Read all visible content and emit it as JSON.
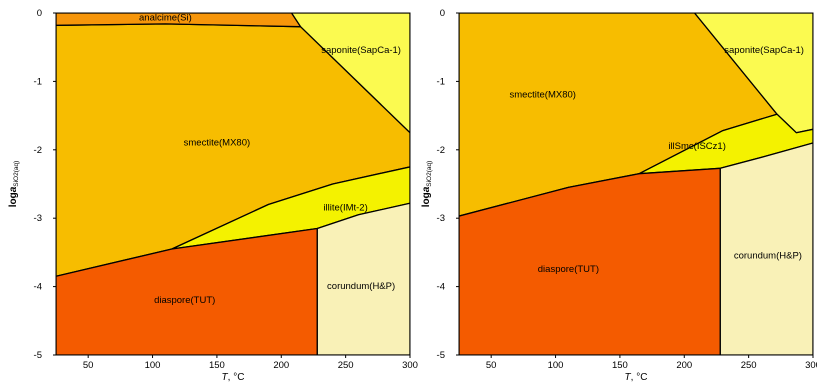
{
  "chart_data": [
    {
      "type": "area",
      "title": "",
      "xlabel": {
        "italic": "T",
        "rest": ", °C"
      },
      "ylabel": {
        "main": "log",
        "italic": "a",
        "sub": "SiO2(aq)"
      },
      "xlim": [
        25,
        300
      ],
      "ylim": [
        -5,
        0
      ],
      "x_ticks": [
        "50",
        "100",
        "150",
        "200",
        "250",
        "300"
      ],
      "x_tick_values": [
        50,
        100,
        150,
        200,
        250,
        300
      ],
      "y_ticks": [
        "0",
        "-1",
        "-2",
        "-3",
        "-4",
        "-5"
      ],
      "y_tick_values": [
        0,
        -1,
        -2,
        -3,
        -4,
        -5
      ],
      "regions": [
        {
          "name": "smectite(MX80)",
          "color": "#f7bd00",
          "polygon": [
            [
              25,
              -0.18
            ],
            [
              110,
              -0.16
            ],
            [
              215,
              -0.2
            ],
            [
              300,
              -1.75
            ],
            [
              300,
              -2.25
            ],
            [
              240,
              -2.5
            ],
            [
              190,
              -2.8
            ],
            [
              115,
              -3.45
            ],
            [
              25,
              -3.85
            ]
          ],
          "label_at": [
            150,
            -1.9
          ]
        },
        {
          "name": "analcime(Si)",
          "color": "#f7960a",
          "polygon": [
            [
              25,
              0
            ],
            [
              208,
              0
            ],
            [
              215,
              -0.2
            ],
            [
              110,
              -0.16
            ],
            [
              25,
              -0.18
            ]
          ],
          "label_at": [
            110,
            -0.07
          ]
        },
        {
          "name": "saponite(SapCa-1)",
          "color": "#fbfa50",
          "polygon": [
            [
              208,
              0
            ],
            [
              300,
              0
            ],
            [
              300,
              -1.75
            ],
            [
              215,
              -0.2
            ]
          ],
          "label_at": [
            262,
            -0.55
          ]
        },
        {
          "name": "illite(IMt-2)",
          "color": "#f4f200",
          "polygon": [
            [
              115,
              -3.45
            ],
            [
              190,
              -2.8
            ],
            [
              240,
              -2.5
            ],
            [
              300,
              -2.25
            ],
            [
              300,
              -2.78
            ],
            [
              260,
              -2.95
            ],
            [
              228,
              -3.15
            ]
          ],
          "label_at": [
            250,
            -2.85
          ]
        },
        {
          "name": "diaspore(TUT)",
          "color": "#f45b00",
          "polygon": [
            [
              25,
              -3.85
            ],
            [
              115,
              -3.45
            ],
            [
              228,
              -3.15
            ],
            [
              228,
              -5
            ],
            [
              25,
              -5
            ]
          ],
          "label_at": [
            125,
            -4.2
          ]
        },
        {
          "name": "corundum(H&P)",
          "color": "#f9f1b7",
          "polygon": [
            [
              228,
              -3.15
            ],
            [
              260,
              -2.95
            ],
            [
              300,
              -2.78
            ],
            [
              300,
              -5
            ],
            [
              228,
              -5
            ]
          ],
          "label_at": [
            262,
            -4.0
          ]
        }
      ]
    },
    {
      "type": "area",
      "title": "",
      "xlabel": {
        "italic": "T",
        "rest": ", °C"
      },
      "ylabel": {
        "main": "log",
        "italic": "a",
        "sub": "SiO2(aq)"
      },
      "xlim": [
        25,
        300
      ],
      "ylim": [
        -5,
        0
      ],
      "x_ticks": [
        "50",
        "100",
        "150",
        "200",
        "250",
        "300"
      ],
      "x_tick_values": [
        50,
        100,
        150,
        200,
        250,
        300
      ],
      "y_ticks": [
        "0",
        "-1",
        "-2",
        "-3",
        "-4",
        "-5"
      ],
      "y_tick_values": [
        0,
        -1,
        -2,
        -3,
        -4,
        -5
      ],
      "regions": [
        {
          "name": "smectite(MX80)",
          "color": "#f7bd00",
          "polygon": [
            [
              25,
              0
            ],
            [
              208,
              0
            ],
            [
              272,
              -1.48
            ],
            [
              230,
              -1.72
            ],
            [
              165,
              -2.35
            ],
            [
              110,
              -2.55
            ],
            [
              25,
              -2.97
            ]
          ],
          "label_at": [
            90,
            -1.2
          ]
        },
        {
          "name": "saponite(SapCa-1)",
          "color": "#fbfa50",
          "polygon": [
            [
              208,
              0
            ],
            [
              300,
              0
            ],
            [
              300,
              -1.7
            ],
            [
              287,
              -1.75
            ],
            [
              272,
              -1.48
            ]
          ],
          "label_at": [
            262,
            -0.55
          ]
        },
        {
          "name": "illSmc(ISCz1)",
          "color": "#f4f200",
          "polygon": [
            [
              165,
              -2.35
            ],
            [
              230,
              -1.72
            ],
            [
              272,
              -1.48
            ],
            [
              287,
              -1.75
            ],
            [
              300,
              -1.7
            ],
            [
              300,
              -1.9
            ],
            [
              262,
              -2.1
            ],
            [
              228,
              -2.27
            ]
          ],
          "label_at": [
            210,
            -1.95
          ]
        },
        {
          "name": "diaspore(TUT)",
          "color": "#f45b00",
          "polygon": [
            [
              25,
              -2.97
            ],
            [
              110,
              -2.55
            ],
            [
              165,
              -2.35
            ],
            [
              228,
              -2.27
            ],
            [
              228,
              -5
            ],
            [
              25,
              -5
            ]
          ],
          "label_at": [
            110,
            -3.75
          ]
        },
        {
          "name": "corundum(H&P)",
          "color": "#f9f1b7",
          "polygon": [
            [
              228,
              -2.27
            ],
            [
              262,
              -2.1
            ],
            [
              300,
              -1.9
            ],
            [
              300,
              -5
            ],
            [
              228,
              -5
            ]
          ],
          "label_at": [
            265,
            -3.55
          ]
        }
      ]
    }
  ]
}
